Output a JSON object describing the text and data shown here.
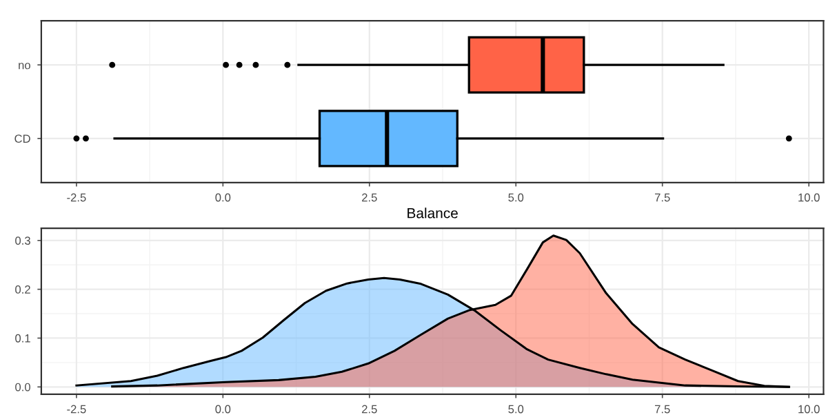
{
  "chart_data": [
    {
      "type": "box",
      "orientation": "horizontal",
      "xlabel": "Balance",
      "categories": [
        "no",
        "CD"
      ],
      "colors": [
        "#ff6347",
        "#63b8ff"
      ],
      "boxes": [
        {
          "low": 1.29,
          "q1": 4.2,
          "median": 5.46,
          "q3": 6.16,
          "high": 8.54,
          "outliers": [
            -1.89,
            0.05,
            0.28,
            0.56,
            1.1
          ]
        },
        {
          "low": -1.85,
          "q1": 1.65,
          "median": 2.8,
          "q3": 4.0,
          "high": 7.51,
          "outliers": [
            -2.5,
            -2.34,
            9.66
          ]
        }
      ],
      "xlim": [
        -3.1,
        10.25
      ],
      "xticks": [
        {
          "value": -2.5,
          "label": "-2.5"
        },
        {
          "value": 0,
          "label": "0.0"
        },
        {
          "value": 2.5,
          "label": "2.5"
        },
        {
          "value": 5,
          "label": "5.0"
        },
        {
          "value": 7.5,
          "label": "7.5"
        },
        {
          "value": 10,
          "label": "10.0"
        }
      ],
      "grid": true
    },
    {
      "type": "area",
      "xlim": [
        -3.1,
        10.25
      ],
      "ylim": [
        -0.015,
        0.325
      ],
      "xticks": [
        {
          "value": -2.5,
          "label": "-2.5"
        },
        {
          "value": 0,
          "label": "0.0"
        },
        {
          "value": 2.5,
          "label": "2.5"
        },
        {
          "value": 5,
          "label": "5.0"
        },
        {
          "value": 7.5,
          "label": "7.5"
        },
        {
          "value": 10,
          "label": "10.0"
        }
      ],
      "yticks": [
        {
          "value": 0,
          "label": "0.0"
        },
        {
          "value": 0.1,
          "label": "0.1"
        },
        {
          "value": 0.2,
          "label": "0.2"
        },
        {
          "value": 0.3,
          "label": "0.3"
        }
      ],
      "grid": true,
      "series": [
        {
          "color": "#63b8ff",
          "x": [
            -2.5,
            -1.57,
            -1.12,
            -0.67,
            -0.22,
            0.05,
            0.32,
            0.68,
            1.04,
            1.4,
            1.76,
            2.12,
            2.48,
            2.75,
            3.02,
            3.38,
            3.84,
            4.29,
            4.74,
            5.19,
            5.55,
            6.09,
            6.54,
            6.99,
            7.44,
            7.89,
            8.79,
            9.66
          ],
          "values": [
            0.003,
            0.012,
            0.023,
            0.039,
            0.053,
            0.061,
            0.074,
            0.101,
            0.137,
            0.172,
            0.197,
            0.212,
            0.22,
            0.223,
            0.22,
            0.211,
            0.189,
            0.157,
            0.116,
            0.077,
            0.056,
            0.039,
            0.026,
            0.015,
            0.009,
            0.003,
            0.001,
            0.0
          ]
        },
        {
          "color": "#ff6347",
          "x": [
            -1.89,
            -1.12,
            0.05,
            0.95,
            1.58,
            2.03,
            2.48,
            2.93,
            3.38,
            3.84,
            4.2,
            4.65,
            4.92,
            5.19,
            5.46,
            5.64,
            5.86,
            6.09,
            6.54,
            6.99,
            7.44,
            7.89,
            8.34,
            8.79,
            9.24,
            9.66
          ],
          "values": [
            0.001,
            0.003,
            0.01,
            0.014,
            0.021,
            0.031,
            0.048,
            0.074,
            0.107,
            0.14,
            0.157,
            0.168,
            0.187,
            0.241,
            0.296,
            0.31,
            0.301,
            0.274,
            0.192,
            0.129,
            0.081,
            0.056,
            0.034,
            0.012,
            0.002,
            0.0
          ]
        }
      ]
    }
  ]
}
